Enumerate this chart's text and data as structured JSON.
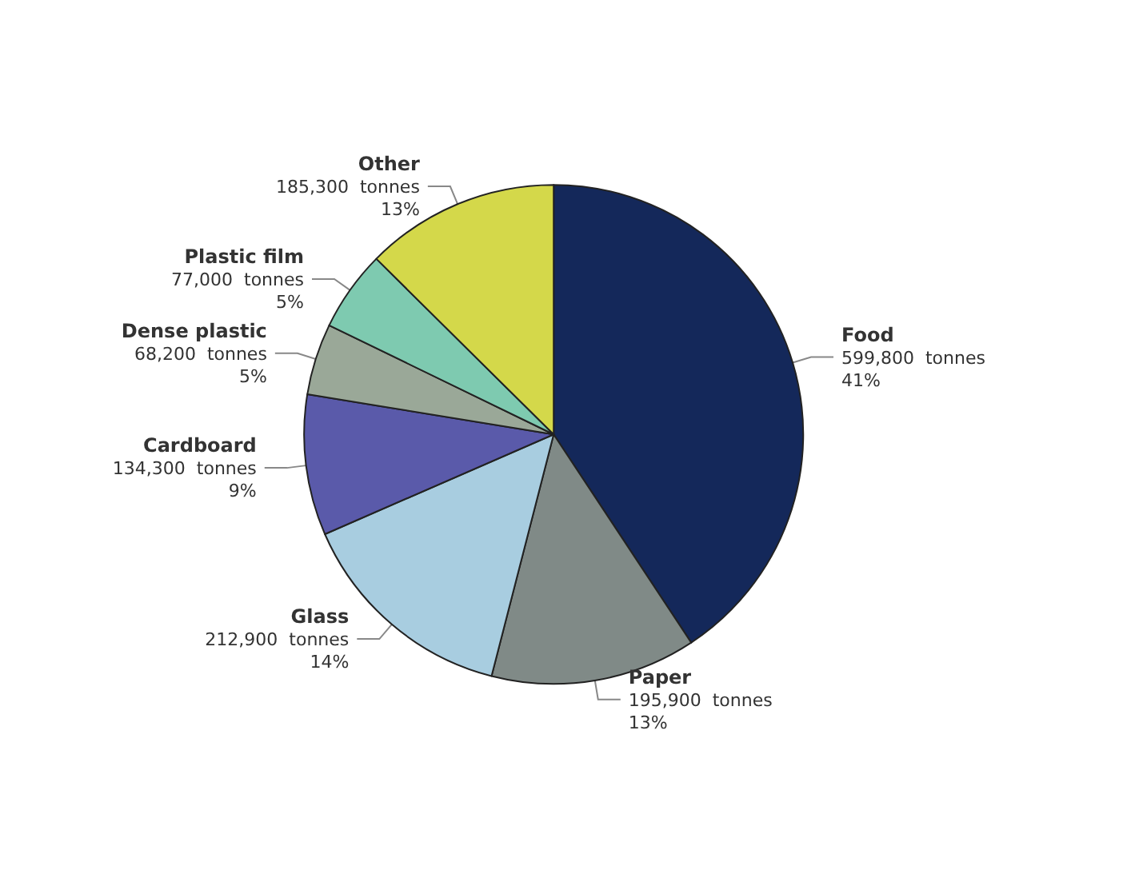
{
  "chart_data": {
    "type": "pie",
    "categories": [
      "Food",
      "Paper",
      "Glass",
      "Cardboard",
      "Dense plastic",
      "Plastic film",
      "Other"
    ],
    "values": [
      599800,
      195900,
      212900,
      134300,
      68200,
      77000,
      185300
    ],
    "value_labels": [
      "599,800  tonnes\n41%",
      "195,900  tonnes\n13%",
      "212,900  tonnes\n14%",
      "134,300  tonnes\n9%",
      "68,200  tonnes\n5%",
      "77,000  tonnes\n5%",
      "185,300  tonnes\n13%"
    ],
    "colors": [
      "#14285a",
      "#808a87",
      "#a8cde0",
      "#5a5aaa",
      "#9aa898",
      "#7ecab0",
      "#d4d84a"
    ],
    "legend": false
  }
}
